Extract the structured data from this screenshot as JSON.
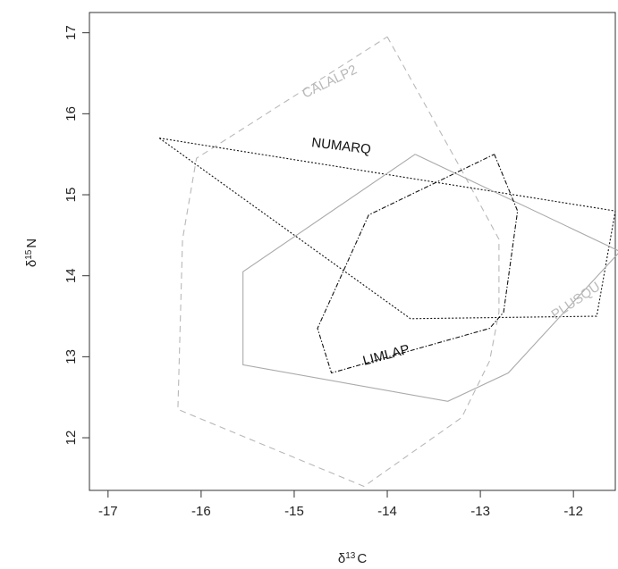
{
  "chart_data": {
    "type": "scatter",
    "xlabel": {
      "symbol": "δ",
      "sup": "13",
      "unit": "C"
    },
    "ylabel": {
      "symbol": "δ",
      "sup": "15",
      "unit": "N"
    },
    "xlim": [
      -17.2,
      -11.55
    ],
    "ylim": [
      11.35,
      17.25
    ],
    "x_ticks": [
      -17,
      -16,
      -15,
      -14,
      -13,
      -12
    ],
    "y_ticks": [
      12,
      13,
      14,
      15,
      16,
      17
    ],
    "grid": false,
    "legend": "none",
    "series": [
      {
        "name": "CALALP2",
        "color": "#b8b8b8",
        "dash": "dashed",
        "label": {
          "text": "CALALP2",
          "x": -14.6,
          "y": 16.35,
          "angle": -26,
          "color": "#b8b8b8"
        },
        "points": [
          [
            -14.0,
            16.95
          ],
          [
            -13.2,
            15.3
          ],
          [
            -12.8,
            14.45
          ],
          [
            -12.8,
            13.55
          ],
          [
            -12.9,
            12.95
          ],
          [
            -13.2,
            12.25
          ],
          [
            -14.25,
            11.4
          ],
          [
            -16.25,
            12.35
          ],
          [
            -16.2,
            14.45
          ],
          [
            -16.05,
            15.45
          ],
          [
            -14.0,
            16.95
          ]
        ]
      },
      {
        "name": "NUMARQ",
        "color": "#111111",
        "dash": "dotted",
        "label": {
          "text": "NUMARQ",
          "x": -14.5,
          "y": 15.55,
          "angle": 7,
          "color": "#111111"
        },
        "points": [
          [
            -16.45,
            15.7
          ],
          [
            -11.55,
            14.8
          ],
          [
            -11.75,
            13.5
          ],
          [
            -13.75,
            13.47
          ],
          [
            -16.45,
            15.7
          ]
        ]
      },
      {
        "name": "PLUSQU",
        "color": "#aaaaaa",
        "dash": "solid",
        "label": {
          "text": "PLUSQU",
          "x": -11.95,
          "y": 13.65,
          "angle": -34,
          "color": "#bbbbbb"
        },
        "points": [
          [
            -13.7,
            15.5
          ],
          [
            -11.5,
            14.3
          ],
          [
            -12.7,
            12.8
          ],
          [
            -13.35,
            12.45
          ],
          [
            -15.55,
            12.9
          ],
          [
            -15.55,
            14.05
          ],
          [
            -13.7,
            15.5
          ]
        ]
      },
      {
        "name": "LIMLAP",
        "color": "#111111",
        "dash": "dashdot",
        "label": {
          "text": "LIMLAP",
          "x": -14.0,
          "y": 12.97,
          "angle": -15,
          "color": "#111111"
        },
        "points": [
          [
            -12.85,
            15.5
          ],
          [
            -12.6,
            14.8
          ],
          [
            -12.75,
            13.55
          ],
          [
            -12.9,
            13.35
          ],
          [
            -14.6,
            12.8
          ],
          [
            -14.75,
            13.35
          ],
          [
            -14.2,
            14.75
          ],
          [
            -12.85,
            15.5
          ]
        ]
      }
    ]
  }
}
